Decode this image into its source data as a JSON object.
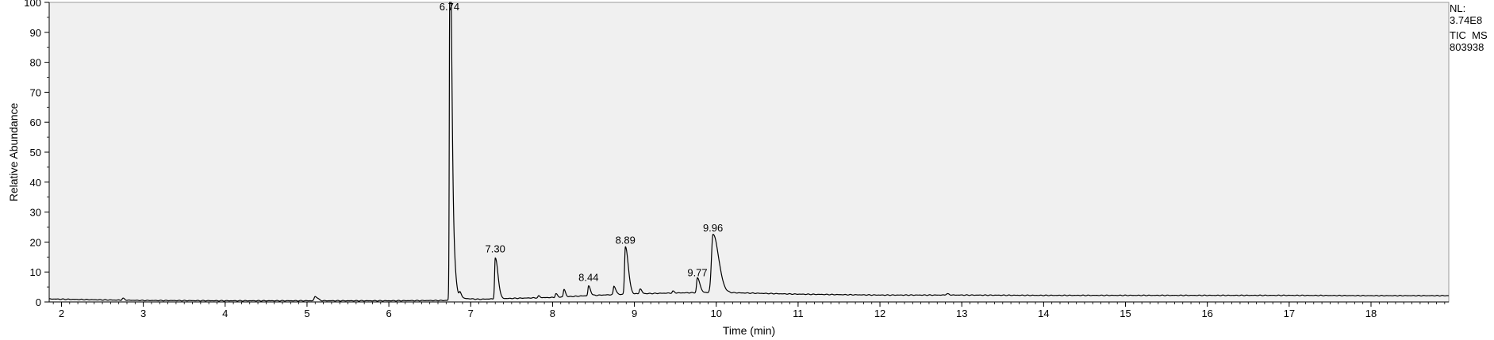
{
  "chart_data": {
    "type": "line",
    "title": "",
    "xlabel": "Time (min)",
    "ylabel": "Relative Abundance",
    "xlim": [
      1.85,
      18.95
    ],
    "ylim": [
      0,
      100
    ],
    "xticks": [
      2,
      3,
      4,
      5,
      6,
      7,
      8,
      9,
      10,
      11,
      12,
      13,
      14,
      15,
      16,
      17,
      18
    ],
    "yticks": [
      0,
      10,
      20,
      30,
      40,
      50,
      60,
      70,
      80,
      90,
      100
    ],
    "baseline": [
      [
        1.85,
        1.0
      ],
      [
        2.5,
        0.7
      ],
      [
        3.0,
        0.5
      ],
      [
        4.0,
        0.4
      ],
      [
        5.0,
        0.4
      ],
      [
        6.0,
        0.4
      ],
      [
        6.7,
        0.5
      ],
      [
        6.9,
        1.2
      ],
      [
        7.1,
        0.9
      ],
      [
        7.5,
        1.2
      ],
      [
        8.0,
        1.5
      ],
      [
        8.5,
        2.2
      ],
      [
        9.0,
        2.7
      ],
      [
        9.5,
        3.0
      ],
      [
        10.0,
        3.2
      ],
      [
        10.5,
        2.9
      ],
      [
        11.0,
        2.6
      ],
      [
        12.0,
        2.3
      ],
      [
        13.0,
        2.3
      ],
      [
        14.0,
        2.2
      ],
      [
        15.0,
        2.2
      ],
      [
        16.0,
        2.2
      ],
      [
        17.0,
        2.2
      ],
      [
        18.0,
        2.1
      ],
      [
        18.95,
        2.1
      ]
    ],
    "peaks": [
      {
        "rt": 2.75,
        "height": 0.6,
        "width": 0.01,
        "tail": 0.01
      },
      {
        "rt": 5.1,
        "height": 1.4,
        "width": 0.012,
        "tail": 0.02
      },
      {
        "rt": 6.745,
        "height": 99.5,
        "width": 0.006,
        "tail": 0.015
      },
      {
        "rt": 6.755,
        "height": 30.0,
        "width": 0.01,
        "tail": 0.03
      },
      {
        "rt": 6.87,
        "height": 1.8,
        "width": 0.01,
        "tail": 0.01
      },
      {
        "rt": 7.3,
        "height": 13.6,
        "width": 0.008,
        "tail": 0.025
      },
      {
        "rt": 7.83,
        "height": 0.6,
        "width": 0.008,
        "tail": 0.01
      },
      {
        "rt": 8.04,
        "height": 1.2,
        "width": 0.008,
        "tail": 0.01
      },
      {
        "rt": 8.14,
        "height": 2.5,
        "width": 0.008,
        "tail": 0.01
      },
      {
        "rt": 8.44,
        "height": 3.2,
        "width": 0.008,
        "tail": 0.015
      },
      {
        "rt": 8.75,
        "height": 2.8,
        "width": 0.008,
        "tail": 0.015
      },
      {
        "rt": 8.89,
        "height": 15.8,
        "width": 0.01,
        "tail": 0.025
      },
      {
        "rt": 9.07,
        "height": 1.6,
        "width": 0.01,
        "tail": 0.01
      },
      {
        "rt": 9.47,
        "height": 0.6,
        "width": 0.008,
        "tail": 0.01
      },
      {
        "rt": 9.77,
        "height": 4.9,
        "width": 0.01,
        "tail": 0.02
      },
      {
        "rt": 9.96,
        "height": 19.5,
        "width": 0.018,
        "tail": 0.05
      },
      {
        "rt": 12.82,
        "height": 0.4,
        "width": 0.015,
        "tail": 0.01
      }
    ],
    "annotations": [
      {
        "label": "6.74",
        "x": 6.74,
        "y": 100
      },
      {
        "label": "7.30",
        "x": 7.3,
        "y": 15.5
      },
      {
        "label": "8.44",
        "x": 8.44,
        "y": 5.9
      },
      {
        "label": "8.89",
        "x": 8.89,
        "y": 18.4
      },
      {
        "label": "9.77",
        "x": 9.77,
        "y": 7.6
      },
      {
        "label": "9.96",
        "x": 9.96,
        "y": 22.5
      }
    ]
  },
  "info": {
    "nl_label": "NL:",
    "nl_value": "3.74E8",
    "trace_label": "TIC  MS",
    "sample_id": "803938"
  },
  "colors": {
    "plot_background": "#f0f0f0",
    "trace": "#000000",
    "axis": "#000000"
  }
}
